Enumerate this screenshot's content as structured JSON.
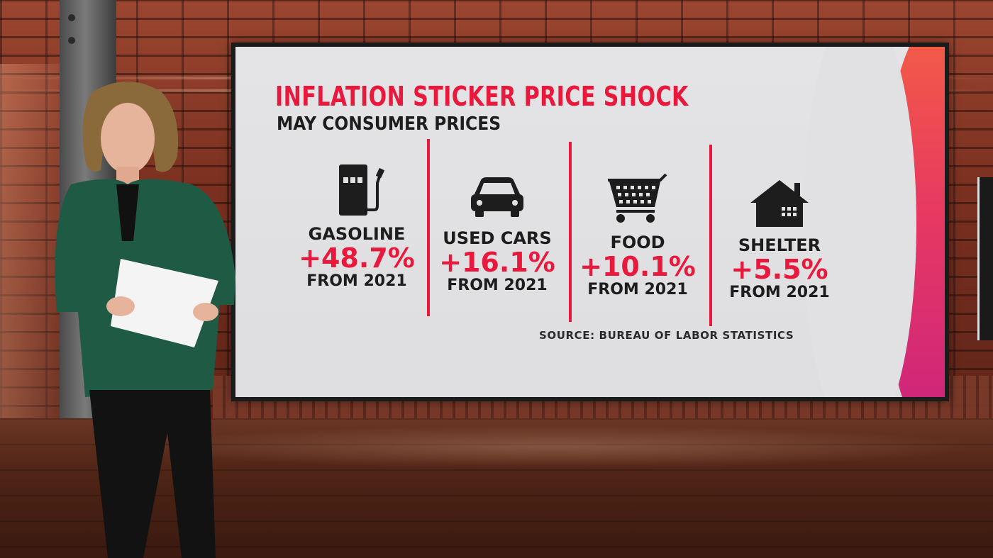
{
  "graphic": {
    "title": "INFLATION STICKER PRICE SHOCK",
    "subtitle": "MAY CONSUMER PRICES",
    "source": "SOURCE: BUREAU OF LABOR STATISTICS",
    "accent_color": "#e8193c",
    "categories": [
      {
        "icon": "gas-pump-icon",
        "name": "GASOLINE",
        "change": "+48.7%",
        "from": "FROM 2021"
      },
      {
        "icon": "car-icon",
        "name": "USED CARS",
        "change": "+16.1%",
        "from": "FROM 2021"
      },
      {
        "icon": "shopping-cart-icon",
        "name": "FOOD",
        "change": "+10.1%",
        "from": "FROM 2021"
      },
      {
        "icon": "house-icon",
        "name": "SHELTER",
        "change": "+5.5%",
        "from": "FROM 2021"
      }
    ]
  },
  "scene": {
    "background": "brick-wall studio",
    "presenter_outfit_color": "#1f5a45"
  }
}
